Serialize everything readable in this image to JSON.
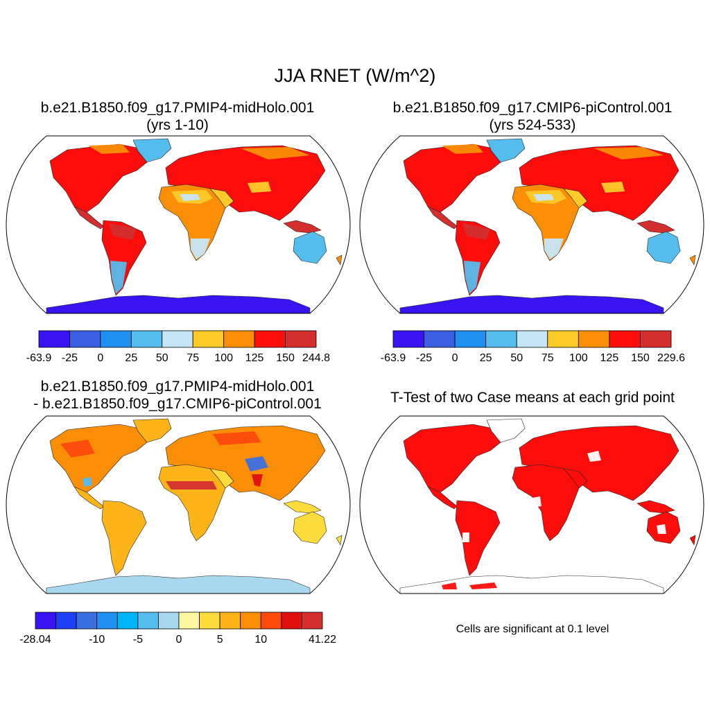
{
  "title": "JJA RNET (W/m^2)",
  "panels": [
    {
      "id": "case1",
      "title_line1": "b.e21.B1850.f09_g17.PMIP4-midHolo.001",
      "title_line2": "(yrs 1-10)",
      "style": "abs",
      "colorbar": {
        "colors": [
          "#3a14f0",
          "#3b5fe0",
          "#1f8ff0",
          "#55bdee",
          "#c6e6f7",
          "#fccb2a",
          "#fb8e07",
          "#fb0d0c",
          "#d32f2f"
        ],
        "labels": [
          "-63.9",
          "-25",
          "0",
          "25",
          "50",
          "75",
          "100",
          "125",
          "150",
          "244.8"
        ]
      }
    },
    {
      "id": "case2",
      "title_line1": "b.e21.B1850.f09_g17.CMIP6-piControl.001",
      "title_line2": "(yrs 524-533)",
      "style": "abs",
      "colorbar": {
        "colors": [
          "#3a14f0",
          "#3b5fe0",
          "#1f8ff0",
          "#55bdee",
          "#c6e6f7",
          "#fccb2a",
          "#fb8e07",
          "#fb0d0c",
          "#d32f2f"
        ],
        "labels": [
          "-63.9",
          "-25",
          "0",
          "25",
          "50",
          "75",
          "100",
          "125",
          "150",
          "229.6"
        ]
      }
    },
    {
      "id": "diff",
      "title_line1": "b.e21.B1850.f09_g17.PMIP4-midHolo.001",
      "title_line2": "- b.e21.B1850.f09_g17.CMIP6-piControl.001",
      "style": "diff",
      "colorbar": {
        "colors": [
          "#3a14f0",
          "#1f3ff5",
          "#3b6fe0",
          "#1f8ff0",
          "#00b4f8",
          "#55bdee",
          "#a8d8f0",
          "#fff7a0",
          "#fcdc3c",
          "#fcb419",
          "#fb8e07",
          "#fb4a0c",
          "#e01010",
          "#d32f2f"
        ],
        "labels": [
          "-28.04",
          "",
          "",
          "-10",
          "",
          "-5",
          "",
          "0",
          "",
          "5",
          "",
          "10",
          "",
          "",
          "41.22"
        ]
      }
    },
    {
      "id": "ttest",
      "title_line1": "T-Test of two Case means at each grid point",
      "title_line2": "",
      "style": "sig",
      "note": "Cells are significant at 0.1 level"
    }
  ]
}
